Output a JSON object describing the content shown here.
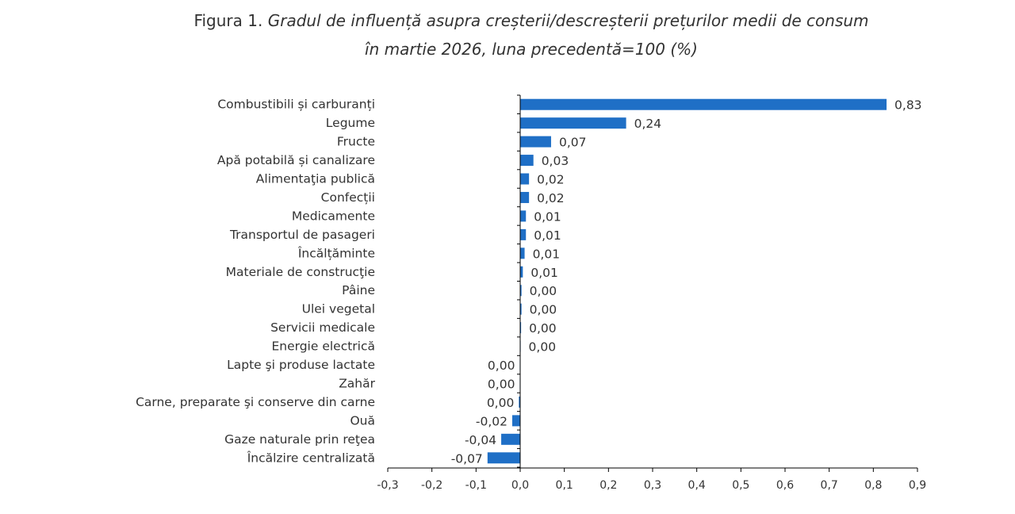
{
  "figure_label": "Figura 1.",
  "title_line1": "Gradul de influență asupra creșterii/descreșterii prețurilor medii de consum",
  "title_line2": "în martie 2026, luna precedentă=100 (%)",
  "chart_data": {
    "type": "bar",
    "orientation": "horizontal",
    "title": "Figura 1. Gradul de influență asupra creșterii/descreșterii prețurilor medii de consum în martie 2026, luna precedentă=100 (%)",
    "xlabel": "",
    "ylabel": "",
    "xlim": [
      -0.3,
      0.9
    ],
    "xticks": [
      -0.3,
      -0.2,
      -0.1,
      0.0,
      0.1,
      0.2,
      0.3,
      0.4,
      0.5,
      0.6,
      0.7,
      0.8,
      0.9
    ],
    "tick_labels": [
      "-0,3",
      "-0,2",
      "-0,1",
      "0,0",
      "0,1",
      "0,2",
      "0,3",
      "0,4",
      "0,5",
      "0,6",
      "0,7",
      "0,8",
      "0,9"
    ],
    "bar_color": "#1f6fc6",
    "categories": [
      "Combustibili și carburanți",
      "Legume",
      "Fructe",
      "Apă potabilă și canalizare",
      "Alimentaţia publică",
      "Confecții",
      "Medicamente",
      "Transportul de pasageri",
      "Încălțăminte",
      "Materiale de construcţie",
      "Pâine",
      "Ulei vegetal",
      "Servicii medicale",
      "Energie electrică",
      "Lapte şi produse lactate",
      "Zahăr",
      "Carne, preparate şi conserve din carne",
      "Ouă",
      "Gaze naturale prin reţea",
      "Încălzire centralizată"
    ],
    "values": [
      0.83,
      0.24,
      0.07,
      0.03,
      0.02,
      0.02,
      0.013,
      0.013,
      0.01,
      0.006,
      0.003,
      0.003,
      0.002,
      0.001,
      -0.001,
      -0.001,
      -0.003,
      -0.018,
      -0.043,
      -0.074
    ],
    "data_labels": [
      "0,83",
      "0,24",
      "0,07",
      "0,03",
      "0,02",
      "0,02",
      "0,01",
      "0,01",
      "0,01",
      "0,01",
      "0,00",
      "0,00",
      "0,00",
      "0,00",
      "0,00",
      "0,00",
      "0,00",
      "-0,02",
      "-0,04",
      "-0,07"
    ]
  }
}
